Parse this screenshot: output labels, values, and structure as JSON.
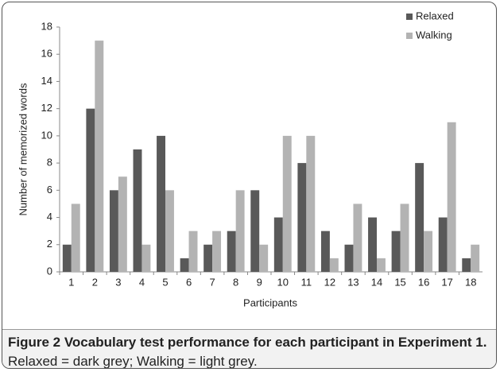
{
  "chart_data": {
    "type": "bar",
    "categories": [
      "1",
      "2",
      "3",
      "4",
      "5",
      "6",
      "7",
      "8",
      "9",
      "10",
      "11",
      "12",
      "13",
      "14",
      "15",
      "16",
      "17",
      "18"
    ],
    "series": [
      {
        "name": "Relaxed",
        "color": "#595959",
        "values": [
          2,
          12,
          6,
          9,
          10,
          1,
          2,
          3,
          6,
          4,
          8,
          3,
          2,
          4,
          3,
          8,
          4,
          1
        ]
      },
      {
        "name": "Walking",
        "color": "#b3b3b3",
        "values": [
          5,
          17,
          7,
          2,
          6,
          3,
          3,
          6,
          2,
          10,
          10,
          1,
          5,
          1,
          5,
          3,
          11,
          2
        ]
      }
    ],
    "ylim": [
      0,
      18
    ],
    "yticks": [
      0,
      2,
      4,
      6,
      8,
      10,
      12,
      14,
      16,
      18
    ],
    "x_label": "Participants",
    "y_label": "Number of memorized words",
    "legend": "top-right",
    "grid": false
  },
  "caption": {
    "label": "Figure 2 Vocabulary test performance for each participant in Experiment 1.",
    "text": "Relaxed = dark grey; Walking = light grey."
  }
}
